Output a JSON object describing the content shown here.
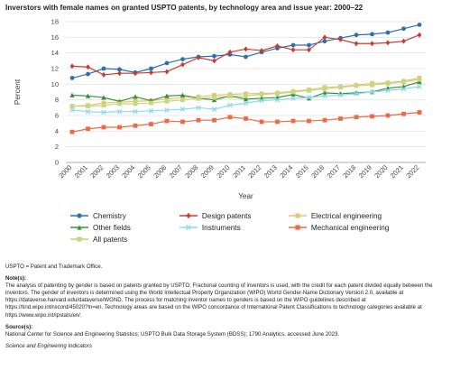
{
  "title": "Inverstors with female names on granted USPTO patents, by technology area and issue year: 2000–22",
  "chart_data": {
    "type": "line",
    "title": "Inverstors with female names on granted USPTO patents, by technology area and issue year: 2000–22",
    "xlabel": "Year",
    "ylabel": "Percent",
    "x": [
      "2000",
      "2001",
      "2002",
      "2003",
      "2004",
      "2005",
      "2006",
      "2007",
      "2008",
      "2009",
      "2010",
      "2011",
      "2012",
      "2013",
      "2014",
      "2015",
      "2016",
      "2017",
      "2018",
      "2019",
      "2020",
      "2021",
      "2022"
    ],
    "ylim": [
      0,
      18
    ],
    "yticks": [
      0,
      2,
      4,
      6,
      8,
      10,
      12,
      14,
      16,
      18
    ],
    "grid": "horizontal",
    "legend_position": "bottom",
    "series": [
      {
        "name": "Chemistry",
        "color": "#2f6fad",
        "marker": "circle",
        "values": [
          10.8,
          11.3,
          12.0,
          11.9,
          11.5,
          12.0,
          12.7,
          13.2,
          13.5,
          13.6,
          13.8,
          13.5,
          14.1,
          14.6,
          15.0,
          15.0,
          15.5,
          15.9,
          16.3,
          16.4,
          16.6,
          17.1,
          17.6
        ]
      },
      {
        "name": "Design patents",
        "color": "#c93b30",
        "marker": "diamond",
        "values": [
          12.3,
          12.2,
          11.2,
          11.4,
          11.4,
          11.5,
          11.6,
          12.5,
          13.4,
          13.0,
          14.1,
          14.5,
          14.3,
          14.9,
          14.4,
          14.4,
          16.0,
          15.7,
          15.2,
          15.2,
          15.3,
          15.5,
          16.3
        ]
      },
      {
        "name": "Electrical engineering",
        "color": "#e8c37a",
        "marker": "square",
        "values": [
          7.2,
          7.3,
          7.6,
          7.7,
          7.8,
          7.9,
          8.1,
          8.3,
          8.4,
          8.6,
          8.7,
          8.8,
          8.8,
          8.9,
          9.1,
          9.3,
          9.6,
          9.7,
          9.9,
          10.1,
          10.2,
          10.4,
          10.8
        ]
      },
      {
        "name": "Other fields",
        "color": "#3a8f3a",
        "marker": "triangle",
        "values": [
          8.6,
          8.5,
          8.3,
          7.8,
          8.4,
          7.9,
          8.5,
          8.6,
          8.2,
          8.0,
          8.5,
          8.1,
          8.2,
          8.3,
          8.7,
          8.2,
          8.9,
          8.8,
          8.9,
          9.0,
          9.5,
          9.7,
          10.3
        ]
      },
      {
        "name": "Instruments",
        "color": "#8ed8ea",
        "marker": "cross",
        "values": [
          6.7,
          6.5,
          6.4,
          6.5,
          6.5,
          6.6,
          6.7,
          6.8,
          7.0,
          6.8,
          7.3,
          7.6,
          7.9,
          8.0,
          8.2,
          8.3,
          8.5,
          8.6,
          8.8,
          9.0,
          9.2,
          9.4,
          9.7
        ]
      },
      {
        "name": "Mechanical engineering",
        "color": "#ec6a46",
        "marker": "square",
        "values": [
          3.9,
          4.3,
          4.5,
          4.5,
          4.7,
          4.9,
          5.3,
          5.2,
          5.4,
          5.4,
          5.8,
          5.6,
          5.2,
          5.2,
          5.3,
          5.3,
          5.4,
          5.6,
          5.8,
          5.9,
          6.0,
          6.2,
          6.4
        ]
      },
      {
        "name": "All patents",
        "color": "#c4d87c",
        "marker": "square",
        "values": [
          7.2,
          7.2,
          7.3,
          7.5,
          7.5,
          7.6,
          7.8,
          8.0,
          8.2,
          8.3,
          8.5,
          8.5,
          8.7,
          8.8,
          9.0,
          9.2,
          9.4,
          9.6,
          9.8,
          9.9,
          10.1,
          10.3,
          10.6
        ]
      }
    ]
  },
  "notes": {
    "abbrev": "USPTO = Patent and Trademark Office.",
    "note_heading": "Note(s):",
    "note_text": "The analysis of patenting by gender is based on patents granted by USPTO. Fractional counting of inventors is used, with the credit for each patent divided equally between the inventors. The gender of inventors is determined using the World Intellectual Property Organization (WIPO) World Gender-Name Dictionary Version 2.0, available at https://dataverse.harvard.edu/dataverse/WGND. The process for matching inventor names to genders is based on the WIPO guidelines described at https://tind.wipo.int/record/45020?ln=en. Technology areas are based on the WIPO concordance of International Patent Classifications to technology categories available at https://www.wipo.int/ipstats/en/.",
    "source_heading": "Source(s):",
    "source_text": "National Center for Science and Engineering Statistics; USPTO Bulk Data Storage System (BDSS); 1790 Analytics, accessed June 2023.",
    "publication": "Science and Engineering Indicators"
  }
}
